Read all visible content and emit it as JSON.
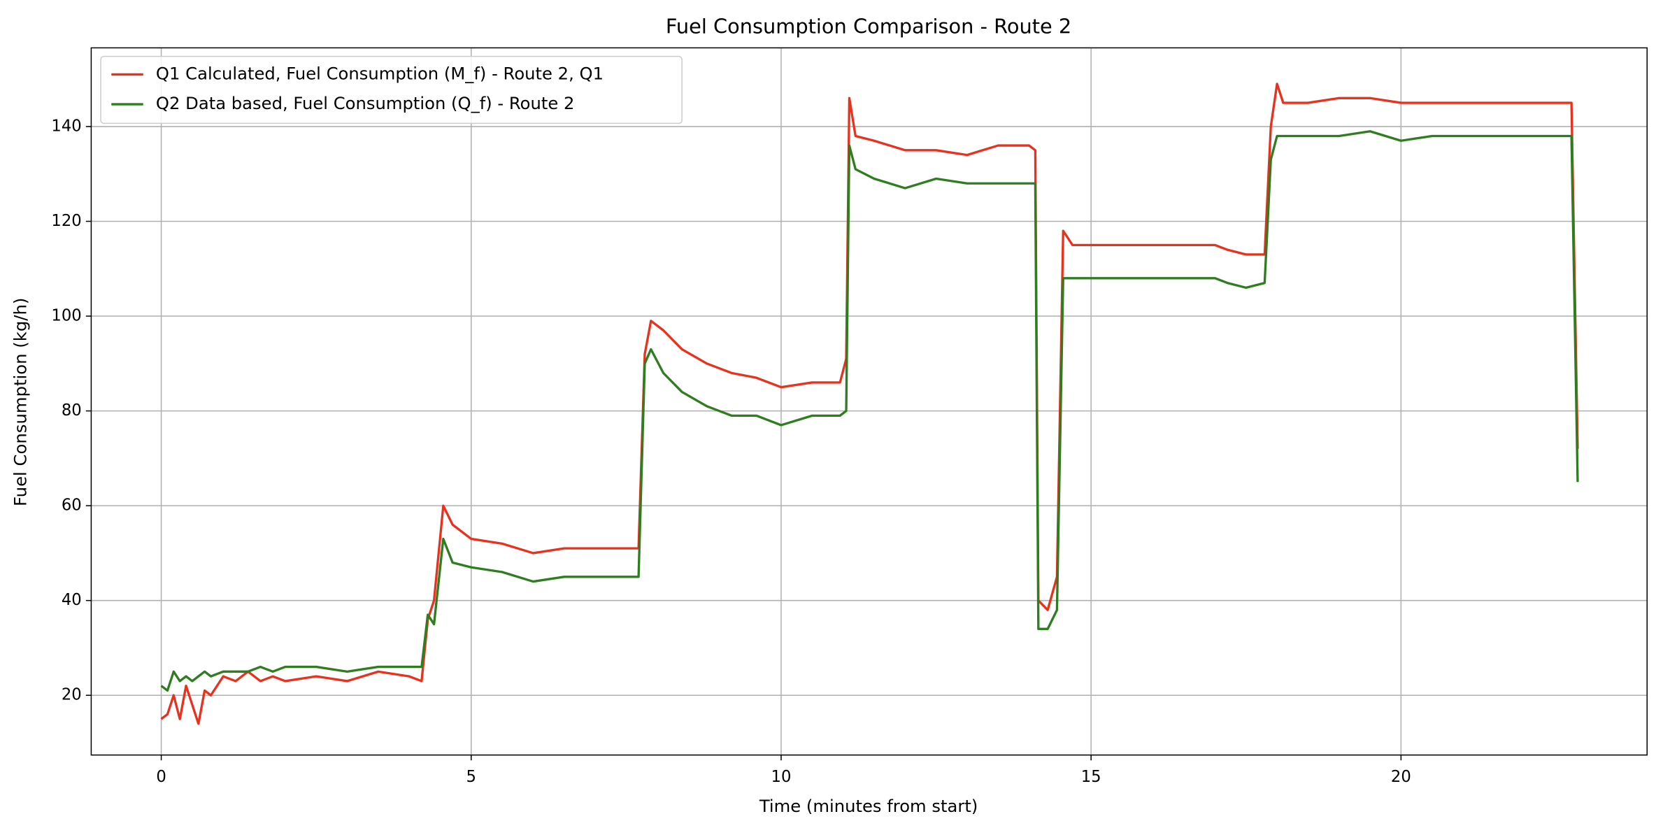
{
  "chart_data": {
    "type": "line",
    "title": "Fuel Consumption Comparison - Route 2",
    "x_label": "Time (minutes from start)",
    "y_label": "Fuel Consumption (kg/h)",
    "x": [
      0,
      0.1,
      0.2,
      0.3,
      0.4,
      0.5,
      0.6,
      0.7,
      0.8,
      1.0,
      1.2,
      1.4,
      1.6,
      1.8,
      2.0,
      2.5,
      3.0,
      3.5,
      4.0,
      4.2,
      4.3,
      4.4,
      4.55,
      4.7,
      5.0,
      5.5,
      6.0,
      6.5,
      7.0,
      7.5,
      7.7,
      7.8,
      7.9,
      8.1,
      8.4,
      8.8,
      9.2,
      9.6,
      10.0,
      10.5,
      10.95,
      11.05,
      11.1,
      11.2,
      11.5,
      12.0,
      12.5,
      13.0,
      13.5,
      14.0,
      14.1,
      14.15,
      14.3,
      14.45,
      14.55,
      14.7,
      15.5,
      16.5,
      17.0,
      17.2,
      17.5,
      17.8,
      17.9,
      18.0,
      18.1,
      18.5,
      19.0,
      19.5,
      20.0,
      20.5,
      21.0,
      21.5,
      22.0,
      22.5,
      22.75,
      22.85
    ],
    "series": [
      {
        "name": "Q1 Calculated, Fuel Consumption (M_f) - Route 2, Q1",
        "color": "#e8321e",
        "values": [
          15,
          16,
          20,
          15,
          22,
          18,
          14,
          21,
          20,
          24,
          23,
          25,
          23,
          24,
          23,
          24,
          23,
          25,
          24,
          23,
          36,
          40,
          60,
          56,
          53,
          52,
          50,
          51,
          51,
          51,
          51,
          92,
          99,
          97,
          93,
          90,
          88,
          87,
          85,
          86,
          86,
          91,
          146,
          138,
          137,
          135,
          135,
          134,
          136,
          136,
          135,
          40,
          38,
          45,
          118,
          115,
          115,
          115,
          115,
          114,
          113,
          113,
          140,
          149,
          145,
          145,
          146,
          146,
          145,
          145,
          145,
          145,
          145,
          145,
          145,
          72
        ]
      },
      {
        "name": "Q2 Data based, Fuel Consumption (Q_f) - Route 2",
        "color": "#2e7d1e",
        "values": [
          22,
          21,
          25,
          23,
          24,
          23,
          24,
          25,
          24,
          25,
          25,
          25,
          26,
          25,
          26,
          26,
          25,
          26,
          26,
          26,
          37,
          35,
          53,
          48,
          47,
          46,
          44,
          45,
          45,
          45,
          45,
          90,
          93,
          88,
          84,
          81,
          79,
          79,
          77,
          79,
          79,
          80,
          136,
          131,
          129,
          127,
          129,
          128,
          128,
          128,
          128,
          34,
          34,
          38,
          108,
          108,
          108,
          108,
          108,
          107,
          106,
          107,
          133,
          138,
          138,
          138,
          138,
          139,
          137,
          138,
          138,
          138,
          138,
          138,
          138,
          65
        ]
      }
    ],
    "xlim": [
      -1.13,
      23.97
    ],
    "ylim": [
      7.4,
      156.6
    ],
    "xticks": [
      0,
      5,
      10,
      15,
      20
    ],
    "yticks": [
      20,
      40,
      60,
      80,
      100,
      120,
      140
    ],
    "grid": true,
    "legend": "upper left"
  }
}
